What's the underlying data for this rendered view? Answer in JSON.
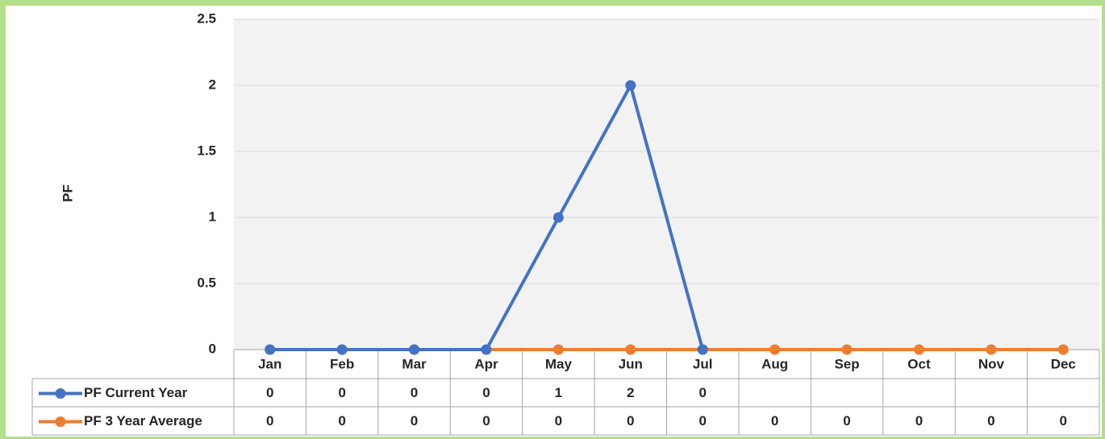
{
  "chart_data": {
    "type": "line",
    "y_label": "PF",
    "categories": [
      "Jan",
      "Feb",
      "Mar",
      "Apr",
      "May",
      "Jun",
      "Jul",
      "Aug",
      "Sep",
      "Oct",
      "Nov",
      "Dec"
    ],
    "series": [
      {
        "name": "PF Current Year",
        "color": "#4472c4",
        "values": [
          0,
          0,
          0,
          0,
          1,
          2,
          0,
          null,
          null,
          null,
          null,
          null
        ]
      },
      {
        "name": "PF 3 Year Average",
        "color": "#ed7d31",
        "values": [
          0,
          0,
          0,
          0,
          0,
          0,
          0,
          0,
          0,
          0,
          0,
          0
        ]
      }
    ],
    "ylim": [
      0,
      2.5
    ],
    "yticks": [
      0,
      0.5,
      1,
      1.5,
      2,
      2.5
    ],
    "grid": true
  }
}
